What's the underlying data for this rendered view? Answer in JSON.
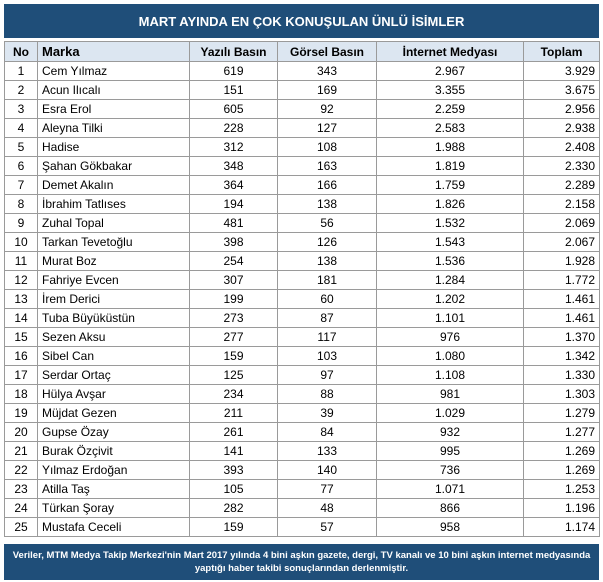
{
  "title": "MART AYINDA EN ÇOK KONUŞULAN ÜNLÜ İSİMLER",
  "table": {
    "columns": [
      "No",
      "Marka",
      "Yazılı Basın",
      "Görsel Basın",
      "İnternet Medyası",
      "Toplam"
    ],
    "rows": [
      [
        "1",
        "Cem Yılmaz",
        "619",
        "343",
        "2.967",
        "3.929"
      ],
      [
        "2",
        "Acun Ilıcalı",
        "151",
        "169",
        "3.355",
        "3.675"
      ],
      [
        "3",
        "Esra Erol",
        "605",
        "92",
        "2.259",
        "2.956"
      ],
      [
        "4",
        "Aleyna Tilki",
        "228",
        "127",
        "2.583",
        "2.938"
      ],
      [
        "5",
        "Hadise",
        "312",
        "108",
        "1.988",
        "2.408"
      ],
      [
        "6",
        "Şahan Gökbakar",
        "348",
        "163",
        "1.819",
        "2.330"
      ],
      [
        "7",
        "Demet Akalın",
        "364",
        "166",
        "1.759",
        "2.289"
      ],
      [
        "8",
        "İbrahim Tatlıses",
        "194",
        "138",
        "1.826",
        "2.158"
      ],
      [
        "9",
        "Zuhal Topal",
        "481",
        "56",
        "1.532",
        "2.069"
      ],
      [
        "10",
        "Tarkan Tevetoğlu",
        "398",
        "126",
        "1.543",
        "2.067"
      ],
      [
        "11",
        "Murat Boz",
        "254",
        "138",
        "1.536",
        "1.928"
      ],
      [
        "12",
        "Fahriye Evcen",
        "307",
        "181",
        "1.284",
        "1.772"
      ],
      [
        "13",
        "İrem Derici",
        "199",
        "60",
        "1.202",
        "1.461"
      ],
      [
        "14",
        "Tuba Büyüküstün",
        "273",
        "87",
        "1.101",
        "1.461"
      ],
      [
        "15",
        "Sezen Aksu",
        "277",
        "117",
        "976",
        "1.370"
      ],
      [
        "16",
        "Sibel Can",
        "159",
        "103",
        "1.080",
        "1.342"
      ],
      [
        "17",
        "Serdar Ortaç",
        "125",
        "97",
        "1.108",
        "1.330"
      ],
      [
        "18",
        "Hülya Avşar",
        "234",
        "88",
        "981",
        "1.303"
      ],
      [
        "19",
        "Müjdat Gezen",
        "211",
        "39",
        "1.029",
        "1.279"
      ],
      [
        "20",
        "Gupse Özay",
        "261",
        "84",
        "932",
        "1.277"
      ],
      [
        "21",
        "Burak Özçivit",
        "141",
        "133",
        "995",
        "1.269"
      ],
      [
        "22",
        "Yılmaz Erdoğan",
        "393",
        "140",
        "736",
        "1.269"
      ],
      [
        "23",
        "Atilla Taş",
        "105",
        "77",
        "1.071",
        "1.253"
      ],
      [
        "24",
        "Türkan Şoray",
        "282",
        "48",
        "866",
        "1.196"
      ],
      [
        "25",
        "Mustafa Ceceli",
        "159",
        "57",
        "958",
        "1.174"
      ]
    ]
  },
  "footer": [
    "Veriler, MTM Medya Takip Merkezi'nin Mart 2017 yılında 4 bini aşkın gazete, dergi, TV kanalı ve 10 bini aşkın internet medyasında",
    "yaptığı haber takibi sonuçlarından derlenmiştir."
  ]
}
